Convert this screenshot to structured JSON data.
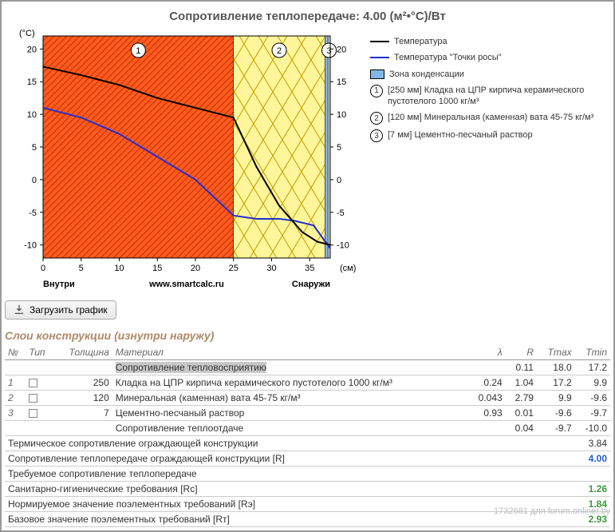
{
  "title": "Сопротивление теплопередаче: 4.00 (м²•°С)/Вт",
  "axis": {
    "y_unit": "(°C)",
    "x_unit": "(см)",
    "x_left_label": "Внутри",
    "x_right_label": "Снаружи",
    "footer": "www.smartcalc.ru",
    "xlim": [
      0,
      37.7
    ],
    "x_ticks": [
      0,
      5,
      10,
      15,
      20,
      25,
      30,
      35
    ],
    "ylim": [
      -12,
      22
    ],
    "y_ticks": [
      -10,
      -5,
      0,
      5,
      10,
      15,
      20
    ]
  },
  "layers_vis": [
    {
      "from": 0,
      "to": 25,
      "fill": "#ff5a1f",
      "pattern": "hatch",
      "label": "1"
    },
    {
      "from": 25,
      "to": 37,
      "fill": "#fff59a",
      "pattern": "cross",
      "label": "2"
    },
    {
      "from": 37,
      "to": 37.4,
      "fill": "#7fb8e8",
      "pattern": "none"
    },
    {
      "from": 37.4,
      "to": 37.7,
      "fill": "#d0d0d0",
      "pattern": "none",
      "label": "3"
    }
  ],
  "series": {
    "temp": {
      "color": "#000000",
      "width": 2,
      "points": [
        [
          0,
          17.3
        ],
        [
          5,
          16
        ],
        [
          10,
          14.5
        ],
        [
          15,
          12.5
        ],
        [
          20,
          11
        ],
        [
          25,
          9.5
        ],
        [
          28,
          2
        ],
        [
          31,
          -4
        ],
        [
          34,
          -8
        ],
        [
          36,
          -9.5
        ],
        [
          37.7,
          -10
        ]
      ]
    },
    "dew": {
      "color": "#2030d0",
      "width": 2,
      "points": [
        [
          0,
          11
        ],
        [
          5,
          9.5
        ],
        [
          10,
          7
        ],
        [
          15,
          3.5
        ],
        [
          20,
          0
        ],
        [
          25,
          -5.5
        ],
        [
          28,
          -6
        ],
        [
          31,
          -6
        ],
        [
          33,
          -6.3
        ],
        [
          35.5,
          -7
        ],
        [
          37.7,
          -10.5
        ]
      ]
    }
  },
  "legend": {
    "temp": "Температура",
    "dew": "Температура \"Точки росы\"",
    "cond": "Зона конденсации",
    "cond_color": "#7fb8e8",
    "items": [
      {
        "n": "1",
        "text": "[250 мм] Кладка на ЦПР кирпича керамического пустотелого 1000 кг/м³"
      },
      {
        "n": "2",
        "text": "[120 мм] Минеральная (каменная) вата 45-75 кг/м³"
      },
      {
        "n": "3",
        "text": "[7 мм] Цементно-песчаный раствор"
      }
    ]
  },
  "button": "Загрузить график",
  "layers_title": "Слои конструкции (изнутри наружу)",
  "cols": {
    "n": "№",
    "type": "Тип",
    "th": "Толщина",
    "mat": "Материал",
    "l": "λ",
    "r": "R",
    "tmax": "Tmax",
    "tmin": "Tmin"
  },
  "rows": [
    {
      "n": "",
      "th": "",
      "mat": "Сопротивление тепловосприятию",
      "l": "",
      "r": "0.11",
      "tmax": "18.0",
      "tmin": "17.2",
      "hl": true
    },
    {
      "n": "1",
      "th": "250",
      "mat": "Кладка на ЦПР кирпича керамического пустотелого 1000 кг/м³",
      "l": "0.24",
      "r": "1.04",
      "tmax": "17.2",
      "tmin": "9.9"
    },
    {
      "n": "2",
      "th": "120",
      "mat": "Минеральная (каменная) вата 45-75 кг/м³",
      "l": "0.043",
      "r": "2.79",
      "tmax": "9.9",
      "tmin": "-9.6"
    },
    {
      "n": "3",
      "th": "7",
      "mat": "Цементно-песчаный раствор",
      "l": "0.93",
      "r": "0.01",
      "tmax": "-9.6",
      "tmin": "-9.7"
    },
    {
      "n": "",
      "th": "",
      "mat": "Сопротивление теплоотдаче",
      "l": "",
      "r": "0.04",
      "tmax": "-9.7",
      "tmin": "-10.0"
    }
  ],
  "summary": [
    {
      "label": "Термическое сопротивление ограждающей конструкции",
      "val": "3.84",
      "cls": ""
    },
    {
      "label": "Сопротивление теплопередаче ограждающей конструкции [R]",
      "val": "4.00",
      "cls": "blue"
    },
    {
      "label": "Требуемое сопротивление теплопередаче",
      "val": "",
      "cls": ""
    },
    {
      "label": "Санитарно-гигиенические требования [Rc]",
      "val": "1.26",
      "cls": "green"
    },
    {
      "label": "Нормируемое значение поэлементных требований [Rэ]",
      "val": "1.84",
      "cls": "green"
    },
    {
      "label": "Базовое значение поэлементных требований [Rт]",
      "val": "2.93",
      "cls": "green"
    }
  ],
  "watermark": "1732681 для forum.onliner.by"
}
